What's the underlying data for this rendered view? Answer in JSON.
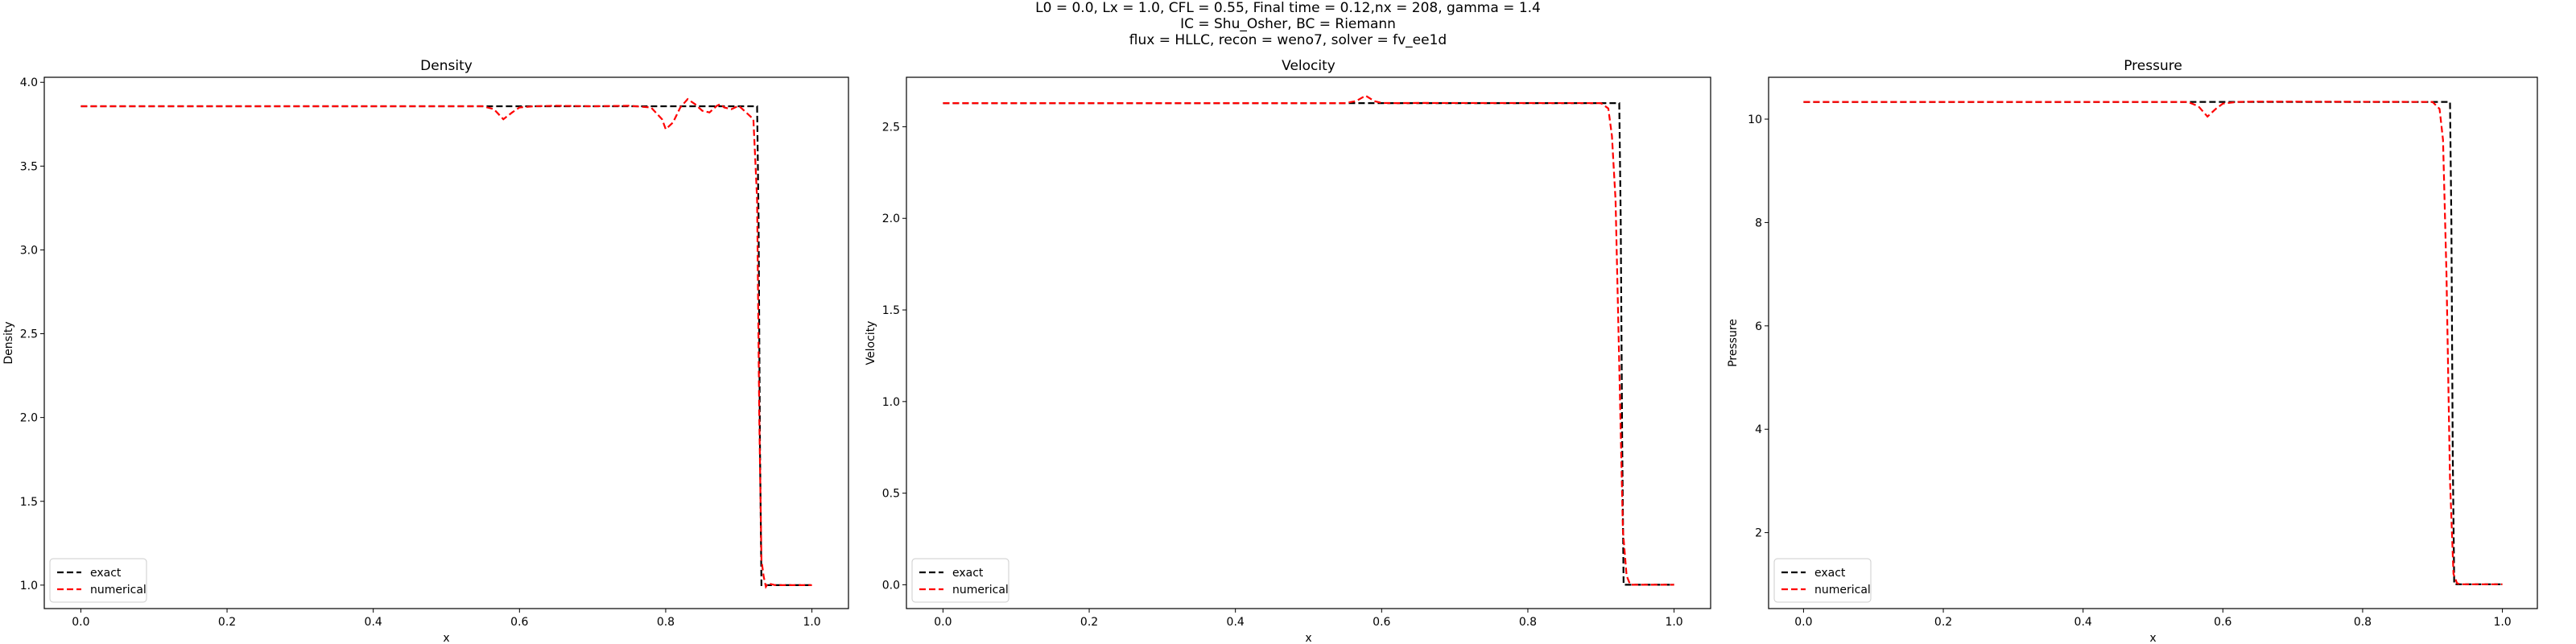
{
  "figure": {
    "title_lines": [
      "L0 = 0.0, Lx = 1.0, CFL = 0.55, Final time = 0.12,nx = 208, gamma = 1.4",
      "IC = Shu_Osher, BC = Riemann",
      "flux = HLLC, recon = weno7, solver = fv_ee1d"
    ]
  },
  "chart_data": [
    {
      "type": "line",
      "title": "Density",
      "xlabel": "x",
      "ylabel": "Density",
      "xlim": [
        -0.05,
        1.05
      ],
      "ylim": [
        0.86,
        4.03
      ],
      "xticks": [
        "0.0",
        "0.2",
        "0.4",
        "0.6",
        "0.8",
        "1.0"
      ],
      "yticks": [
        "1.0",
        "1.5",
        "2.0",
        "2.5",
        "3.0",
        "3.5",
        "4.0"
      ],
      "grid": false,
      "legend": "lower-left",
      "series": [
        {
          "name": "exact",
          "color": "#000000",
          "style": "dashed",
          "x": [
            0.0,
            0.925,
            0.927,
            0.929,
            0.931,
            1.0
          ],
          "y": [
            3.857,
            3.857,
            3.2,
            1.8,
            1.0,
            1.0
          ]
        },
        {
          "name": "numerical",
          "color": "#ff0000",
          "style": "dashed",
          "x": [
            0.0,
            0.55,
            0.565,
            0.578,
            0.59,
            0.6,
            0.62,
            0.65,
            0.7,
            0.75,
            0.78,
            0.795,
            0.8,
            0.81,
            0.82,
            0.83,
            0.84,
            0.85,
            0.86,
            0.87,
            0.875,
            0.88,
            0.89,
            0.9,
            0.91,
            0.92,
            0.925,
            0.928,
            0.931,
            0.934,
            0.937,
            0.94,
            0.95,
            1.0
          ],
          "y": [
            3.857,
            3.857,
            3.84,
            3.78,
            3.82,
            3.85,
            3.857,
            3.86,
            3.857,
            3.86,
            3.85,
            3.78,
            3.72,
            3.76,
            3.85,
            3.9,
            3.87,
            3.83,
            3.82,
            3.86,
            3.87,
            3.85,
            3.84,
            3.86,
            3.82,
            3.78,
            3.3,
            2.0,
            1.15,
            1.05,
            0.99,
            1.01,
            1.0,
            1.0
          ]
        }
      ]
    },
    {
      "type": "line",
      "title": "Velocity",
      "xlabel": "x",
      "ylabel": "Velocity",
      "xlim": [
        -0.05,
        1.05
      ],
      "ylim": [
        -0.13,
        2.77
      ],
      "xticks": [
        "0.0",
        "0.2",
        "0.4",
        "0.6",
        "0.8",
        "1.0"
      ],
      "yticks": [
        "0.0",
        "0.5",
        "1.0",
        "1.5",
        "2.0",
        "2.5"
      ],
      "grid": false,
      "legend": "lower-left",
      "series": [
        {
          "name": "exact",
          "color": "#000000",
          "style": "dashed",
          "x": [
            0.0,
            0.925,
            0.927,
            0.929,
            0.931,
            1.0
          ],
          "y": [
            2.629,
            2.629,
            2.0,
            0.8,
            0.0,
            0.0
          ]
        },
        {
          "name": "numerical",
          "color": "#ff0000",
          "style": "dashed",
          "x": [
            0.0,
            0.55,
            0.565,
            0.578,
            0.59,
            0.6,
            0.62,
            0.65,
            0.9,
            0.91,
            0.915,
            0.92,
            0.925,
            0.93,
            0.935,
            0.94,
            0.95,
            1.0
          ],
          "y": [
            2.629,
            2.629,
            2.64,
            2.67,
            2.64,
            2.63,
            2.629,
            2.63,
            2.629,
            2.6,
            2.45,
            2.1,
            1.2,
            0.3,
            0.05,
            0.0,
            0.0,
            0.0
          ]
        }
      ]
    },
    {
      "type": "line",
      "title": "Pressure",
      "xlabel": "x",
      "ylabel": "Pressure",
      "xlim": [
        -0.05,
        1.05
      ],
      "ylim": [
        0.53,
        10.81
      ],
      "xticks": [
        "0.0",
        "0.2",
        "0.4",
        "0.6",
        "0.8",
        "1.0"
      ],
      "yticks": [
        "2",
        "4",
        "6",
        "8",
        "10"
      ],
      "grid": false,
      "legend": "lower-left",
      "series": [
        {
          "name": "exact",
          "color": "#000000",
          "style": "dashed",
          "x": [
            0.0,
            0.925,
            0.927,
            0.929,
            0.931,
            1.0
          ],
          "y": [
            10.333,
            10.333,
            8.0,
            3.5,
            1.0,
            1.0
          ]
        },
        {
          "name": "numerical",
          "color": "#ff0000",
          "style": "dashed",
          "x": [
            0.0,
            0.55,
            0.565,
            0.578,
            0.59,
            0.6,
            0.62,
            0.65,
            0.9,
            0.91,
            0.915,
            0.92,
            0.925,
            0.93,
            0.935,
            0.94,
            0.95,
            1.0
          ],
          "y": [
            10.333,
            10.333,
            10.25,
            10.05,
            10.2,
            10.3,
            10.333,
            10.34,
            10.333,
            10.2,
            9.6,
            7.0,
            3.0,
            1.2,
            1.02,
            1.0,
            1.0,
            1.0
          ]
        }
      ]
    }
  ]
}
